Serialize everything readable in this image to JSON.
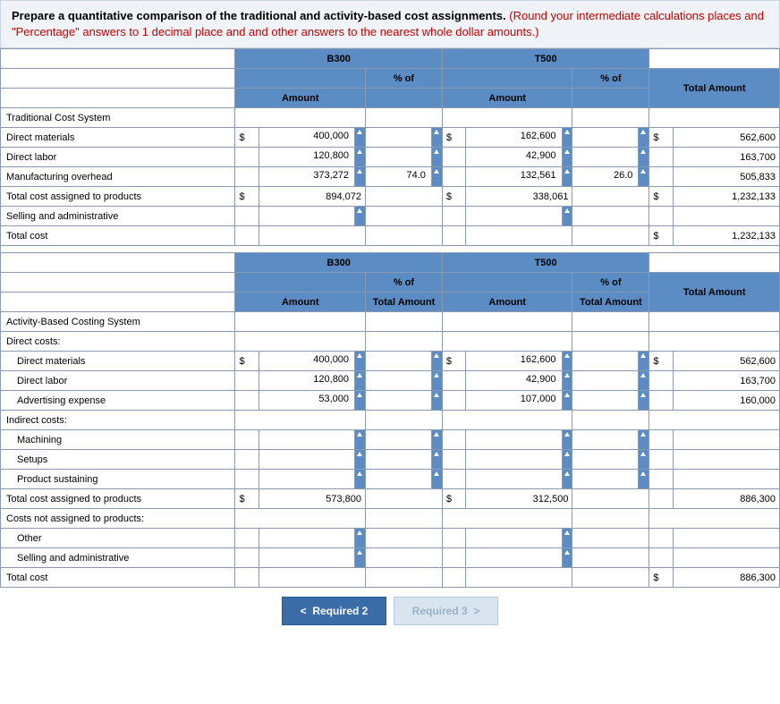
{
  "instruction": {
    "black": "Prepare a quantitative comparison of the traditional and activity-based cost assignments.",
    "red": "(Round your intermediate calculations places and \"Percentage\" answers to 1 decimal place and and other answers to the nearest whole dollar amounts.)"
  },
  "headers": {
    "b300": "B300",
    "t500": "T500",
    "pct_of": "% of",
    "amount": "Amount",
    "total_amount": "Total Amount",
    "total_amount_sub": "Total Amount"
  },
  "trad": {
    "title": "Traditional Cost System",
    "rows": {
      "dm": {
        "label": "Direct materials",
        "b_cur": "$",
        "b_amt": "400,000",
        "b_pct": "",
        "t_cur": "$",
        "t_amt": "162,600",
        "t_pct": "",
        "tot_cur": "$",
        "tot": "562,600"
      },
      "dl": {
        "label": "Direct labor",
        "b_cur": "",
        "b_amt": "120,800",
        "b_pct": "",
        "t_cur": "",
        "t_amt": "42,900",
        "t_pct": "",
        "tot_cur": "",
        "tot": "163,700"
      },
      "moh": {
        "label": "Manufacturing overhead",
        "b_cur": "",
        "b_amt": "373,272",
        "b_pct": "74.0",
        "t_cur": "",
        "t_amt": "132,561",
        "t_pct": "26.0",
        "tot_cur": "",
        "tot": "505,833"
      },
      "tcap": {
        "label": "Total cost assigned to products",
        "b_cur": "$",
        "b_amt": "894,072",
        "b_pct": "",
        "t_cur": "$",
        "t_amt": "338,061",
        "t_pct": "",
        "tot_cur": "$",
        "tot": "1,232,133"
      },
      "sa": {
        "label": "Selling and administrative"
      },
      "tc": {
        "label": "Total cost",
        "tot_cur": "$",
        "tot": "1,232,133"
      }
    }
  },
  "abc": {
    "title": "Activity-Based Costing System",
    "direct_costs_label": "Direct costs:",
    "indirect_costs_label": "Indirect costs:",
    "cnap_label": "Costs not assigned to products:",
    "rows": {
      "dm": {
        "label": "Direct materials",
        "b_cur": "$",
        "b_amt": "400,000",
        "t_cur": "$",
        "t_amt": "162,600",
        "tot_cur": "$",
        "tot": "562,600"
      },
      "dl": {
        "label": "Direct labor",
        "b_cur": "",
        "b_amt": "120,800",
        "t_cur": "",
        "t_amt": "42,900",
        "tot_cur": "",
        "tot": "163,700"
      },
      "adv": {
        "label": "Advertising expense",
        "b_cur": "",
        "b_amt": "53,000",
        "t_cur": "",
        "t_amt": "107,000",
        "tot_cur": "",
        "tot": "160,000"
      },
      "mach": {
        "label": "Machining"
      },
      "setup": {
        "label": "Setups"
      },
      "ps": {
        "label": "Product sustaining"
      },
      "tcap": {
        "label": "Total cost assigned to products",
        "b_cur": "$",
        "b_amt": "573,800",
        "t_cur": "$",
        "t_amt": "312,500",
        "tot_cur": "",
        "tot": "886,300"
      },
      "other": {
        "label": "Other"
      },
      "sa": {
        "label": "Selling and administrative"
      },
      "tc": {
        "label": "Total cost",
        "tot_cur": "$",
        "tot": "886,300"
      }
    }
  },
  "nav": {
    "prev": "Required 2",
    "next": "Required 3"
  },
  "colors": {
    "header_bg": "#5b8cc4",
    "border": "#8a9ab0",
    "instruction_bg": "#f0f4f8",
    "red_text": "#c00000",
    "tick_bg": "#5b8cc4"
  }
}
